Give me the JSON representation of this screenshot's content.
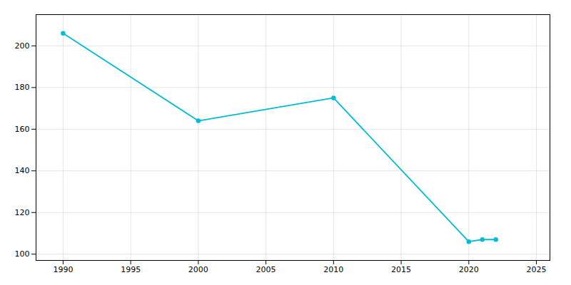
{
  "chart_data": {
    "type": "line",
    "x": [
      1990,
      2000,
      2010,
      2020,
      2021,
      2022
    ],
    "values": [
      206,
      164,
      175,
      106,
      107,
      107
    ],
    "color": "#00bcd4",
    "marker": "circle",
    "xlim": [
      1988,
      2026
    ],
    "ylim": [
      97,
      215
    ],
    "xticks": [
      1990,
      1995,
      2000,
      2005,
      2010,
      2015,
      2020,
      2025
    ],
    "yticks": [
      100,
      120,
      140,
      160,
      180,
      200
    ],
    "grid": true
  }
}
